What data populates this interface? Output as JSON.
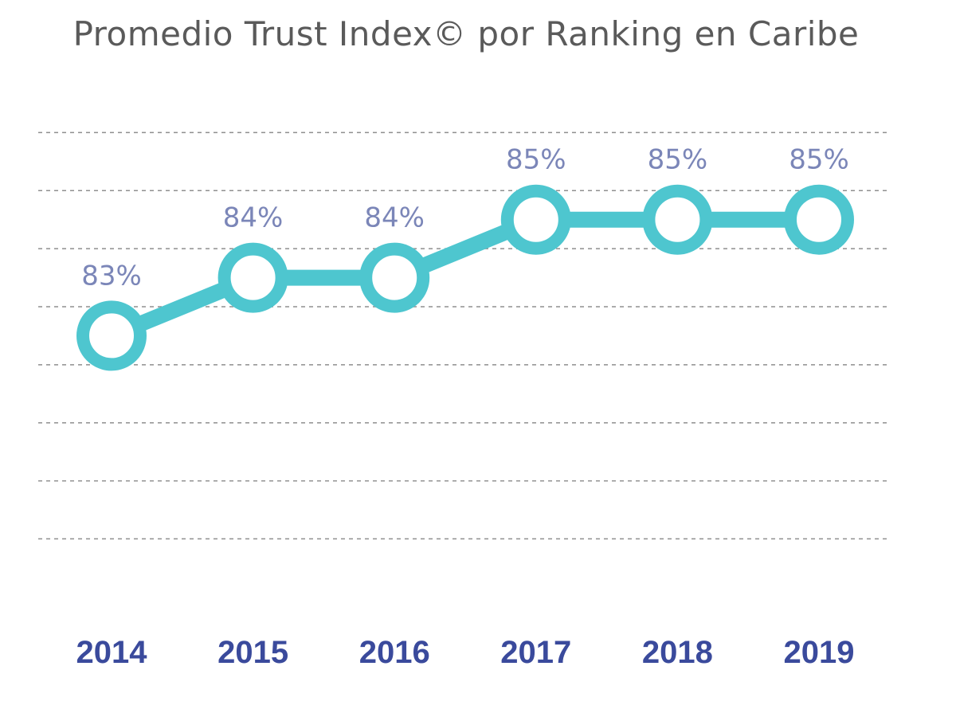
{
  "chart_data": {
    "type": "line",
    "title": "Promedio Trust Index© por  Ranking en Caribe",
    "xlabel": "",
    "ylabel": "",
    "categories": [
      "2014",
      "2015",
      "2016",
      "2017",
      "2018",
      "2019"
    ],
    "values": [
      83,
      84,
      84,
      85,
      85,
      85
    ],
    "data_labels": [
      "83%",
      "84%",
      "84%",
      "85%",
      "85%",
      "85%"
    ],
    "ylim": [
      79.5,
      86.5
    ],
    "grid": true,
    "legend": "none"
  },
  "colors": {
    "series": "#4ec6cf",
    "data_label": "#7b86b8",
    "tick_label": "#3a4a9c",
    "title": "#5a5a5a"
  }
}
